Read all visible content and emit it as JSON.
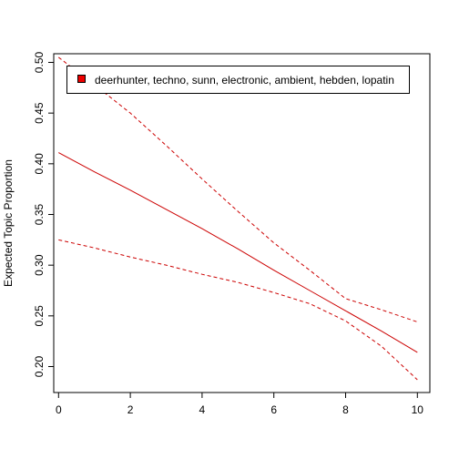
{
  "chart_data": {
    "type": "line",
    "title": "",
    "xlabel": "",
    "ylabel": "Expected Topic Proportion",
    "xlim": [
      0,
      10
    ],
    "ylim": [
      0.2,
      0.5
    ],
    "xticks": [
      0,
      2,
      4,
      6,
      8,
      10
    ],
    "yticks": [
      0.2,
      0.25,
      0.3,
      0.35,
      0.4,
      0.45,
      0.5
    ],
    "ytick_labels": [
      "0.20",
      "0.25",
      "0.30",
      "0.35",
      "0.40",
      "0.45",
      "0.50"
    ],
    "grid": false,
    "legend": {
      "placement": "top-left",
      "entries": [
        "deerhunter, techno, sunn, electronic, ambient, hebden, lopatin"
      ]
    },
    "color": "#cc0000",
    "legend_swatch_color": "#ee0000",
    "series": [
      {
        "role": "estimate",
        "style": "solid",
        "x": [
          0,
          1,
          2,
          3,
          4,
          5,
          6,
          7,
          8,
          9,
          10
        ],
        "values": [
          0.411,
          0.392,
          0.374,
          0.355,
          0.336,
          0.316,
          0.295,
          0.275,
          0.255,
          0.235,
          0.214
        ]
      },
      {
        "role": "upper-bound",
        "style": "dashed",
        "x": [
          0,
          1,
          2,
          3,
          4,
          5,
          6,
          7,
          8,
          9,
          10
        ],
        "values": [
          0.505,
          0.478,
          0.45,
          0.418,
          0.385,
          0.353,
          0.322,
          0.295,
          0.267,
          0.256,
          0.244
        ]
      },
      {
        "role": "lower-bound",
        "style": "dashed",
        "x": [
          0,
          1,
          2,
          3,
          4,
          5,
          6,
          7,
          8,
          9,
          10
        ],
        "values": [
          0.325,
          0.317,
          0.308,
          0.3,
          0.291,
          0.283,
          0.273,
          0.262,
          0.245,
          0.22,
          0.187
        ]
      }
    ]
  }
}
